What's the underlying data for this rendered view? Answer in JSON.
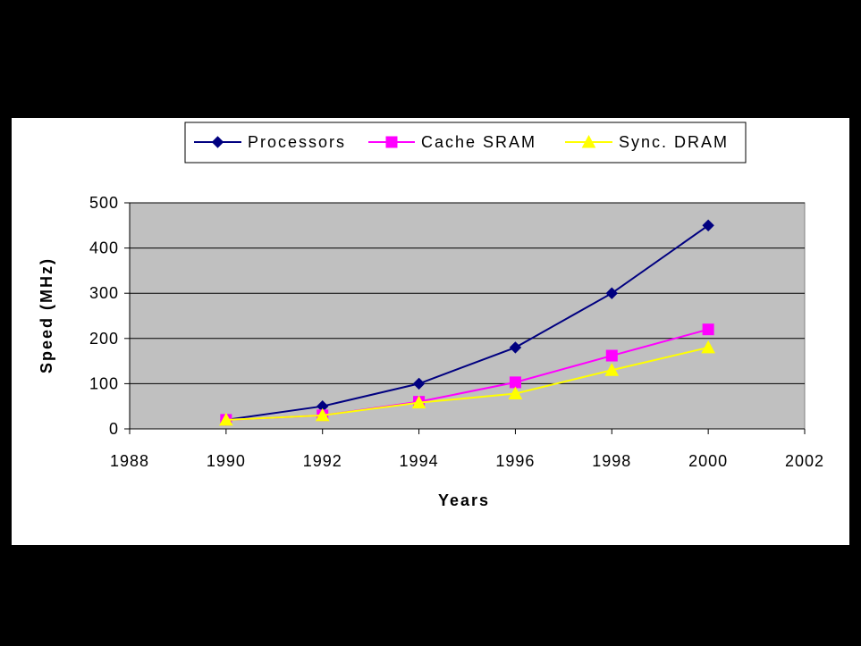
{
  "chart_data": {
    "type": "line",
    "title": "",
    "xlabel": "Years",
    "ylabel": "Speed (MHz)",
    "xlim": [
      1988,
      2002
    ],
    "ylim": [
      0,
      500
    ],
    "x_ticks": [
      1988,
      1990,
      1992,
      1994,
      1996,
      1998,
      2000,
      2002
    ],
    "y_ticks": [
      0,
      100,
      200,
      300,
      400,
      500
    ],
    "x": [
      1990,
      1992,
      1994,
      1996,
      1998,
      2000
    ],
    "grid": true,
    "plot_background": "#c0c0c0",
    "legend_position": "top",
    "series": [
      {
        "name": "Processors",
        "values": [
          20,
          50,
          100,
          180,
          300,
          450
        ],
        "color": "#000080",
        "marker": "diamond"
      },
      {
        "name": "Cache SRAM",
        "values": [
          20,
          30,
          60,
          103,
          162,
          220
        ],
        "color": "#ff00ff",
        "marker": "square"
      },
      {
        "name": "Sync. DRAM",
        "values": [
          20,
          30,
          58,
          78,
          130,
          180
        ],
        "color": "#ffff00",
        "marker": "triangle"
      }
    ]
  }
}
